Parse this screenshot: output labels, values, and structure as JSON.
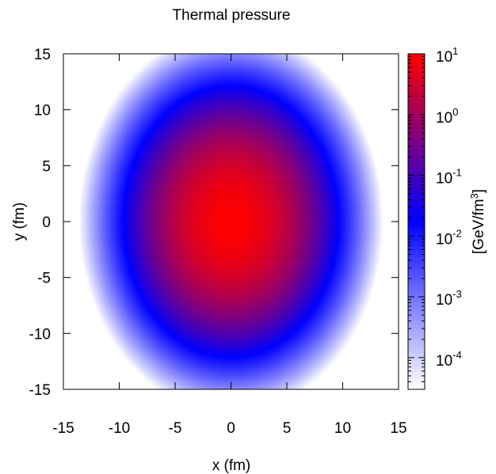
{
  "chart_data": {
    "type": "heatmap",
    "title": "Thermal pressure",
    "xlabel": "x (fm)",
    "ylabel": "y (fm)",
    "xlim": [
      -15,
      15
    ],
    "ylim": [
      -15,
      15
    ],
    "x_ticks": [
      -15,
      -10,
      -5,
      0,
      5,
      10,
      15
    ],
    "y_ticks": [
      -15,
      -10,
      -5,
      0,
      5,
      10,
      15
    ],
    "x_tick_labels": [
      "-15",
      "-10",
      "-5",
      "0",
      "5",
      "10",
      "15"
    ],
    "y_tick_labels": [
      "-15",
      "-10",
      "-5",
      "0",
      "5",
      "10",
      "15"
    ],
    "colorbar": {
      "scale": "log",
      "label_text": "[GeV/fm",
      "label_sup": "3",
      "label_close": "]",
      "range": [
        3e-05,
        10
      ],
      "ticks": [
        {
          "value": 10,
          "base": "10",
          "exp": "1"
        },
        {
          "value": 1,
          "base": "10",
          "exp": "0"
        },
        {
          "value": 0.1,
          "base": "10",
          "exp": "-1"
        },
        {
          "value": 0.01,
          "base": "10",
          "exp": "-2"
        },
        {
          "value": 0.001,
          "base": "10",
          "exp": "-3"
        },
        {
          "value": 0.0001,
          "base": "10",
          "exp": "-4"
        }
      ],
      "colors": [
        "#ffffff",
        "#0000ff",
        "#ff0000"
      ]
    },
    "field": {
      "description_center": [
        0,
        0
      ],
      "peak_value": 10,
      "sigma_x": 2.7,
      "sigma_y": 3.4,
      "floor_value": 3e-05
    }
  }
}
